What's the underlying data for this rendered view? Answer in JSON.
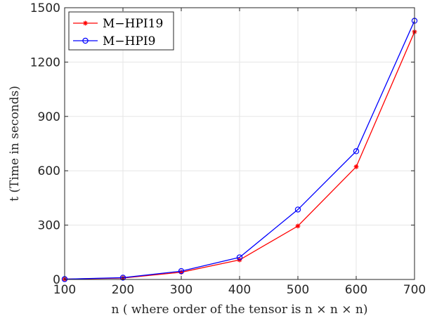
{
  "chart_data": {
    "type": "line",
    "x": [
      100,
      200,
      300,
      400,
      500,
      600,
      700
    ],
    "xlabel": "n ( where order of the tensor is n × n × n)",
    "ylabel": "t (Time in seconds)",
    "xlim": [
      100,
      700
    ],
    "ylim": [
      0,
      1500
    ],
    "xticks": [
      100,
      200,
      300,
      400,
      500,
      600,
      700
    ],
    "yticks": [
      0,
      300,
      600,
      900,
      1200,
      1500
    ],
    "grid": true,
    "legend_position": "top-left",
    "series": [
      {
        "name": "M−HPI19",
        "color": "#ff0000",
        "marker": "asterisk",
        "values": [
          2,
          8,
          40,
          108,
          295,
          622,
          1367
        ]
      },
      {
        "name": "M−HPI9",
        "color": "#0000ff",
        "marker": "circle",
        "values": [
          2,
          10,
          46,
          122,
          386,
          708,
          1428
        ]
      }
    ]
  }
}
